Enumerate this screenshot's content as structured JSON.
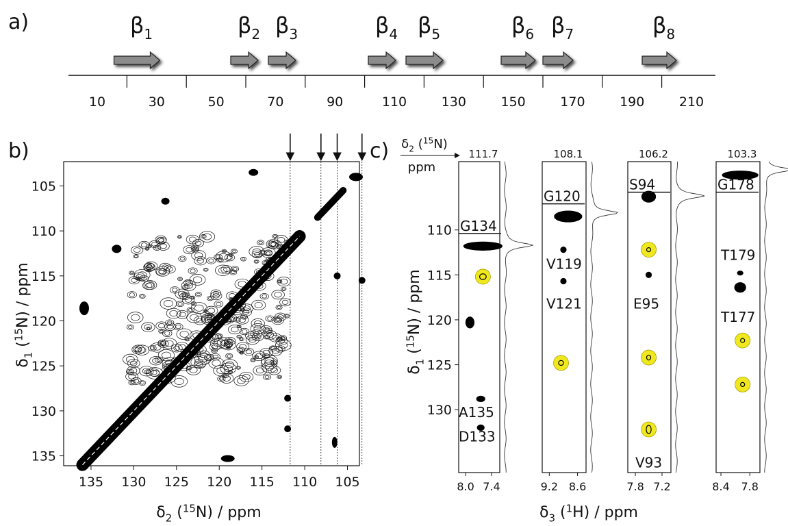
{
  "panel_a": {
    "label": "a)",
    "strands": [
      {
        "symbol": "β",
        "index": "1"
      },
      {
        "symbol": "β",
        "index": "2"
      },
      {
        "symbol": "β",
        "index": "3"
      },
      {
        "symbol": "β",
        "index": "4"
      },
      {
        "symbol": "β",
        "index": "5"
      },
      {
        "symbol": "β",
        "index": "6"
      },
      {
        "symbol": "β",
        "index": "7"
      },
      {
        "symbol": "β",
        "index": "8"
      }
    ],
    "ticks": [
      10,
      30,
      50,
      70,
      90,
      110,
      130,
      150,
      170,
      190,
      210
    ]
  },
  "panel_b": {
    "label": "b)",
    "x_label": {
      "symbol": "δ",
      "index": "2",
      "open": " (",
      "isotope": "15",
      "rest": "N) / ppm"
    },
    "y_label": {
      "symbol": "δ",
      "index": "1",
      "open": " (",
      "isotope": "15",
      "rest": "N) / ppm"
    },
    "xticks": [
      135,
      130,
      125,
      120,
      115,
      110,
      105
    ],
    "yticks": [
      105,
      110,
      115,
      120,
      125,
      130,
      135
    ],
    "xlim": [
      138.2,
      103.6
    ],
    "ylim": [
      102.3,
      136.1
    ]
  },
  "panel_c": {
    "label": "c)",
    "header_label": {
      "symbol": "δ",
      "index": "2",
      "open": " (",
      "isotope": "15",
      "rest": "N)"
    },
    "header_unit": "ppm",
    "y_label": {
      "symbol": "δ",
      "index": "1",
      "open": " (",
      "isotope": "15",
      "rest": "N) / ppm"
    },
    "x_label": {
      "symbol": "δ",
      "index": "3",
      "open": " (",
      "isotope": "1",
      "rest": "H) / ppm"
    },
    "yticks": [
      110,
      115,
      120,
      125,
      130
    ],
    "ylim": [
      102.4,
      137
    ],
    "strips": [
      {
        "shift": 111.7,
        "xticks": [
          {
            "value": 8,
            "label": "8.0"
          },
          7.4
        ],
        "xlim": [
          8.16,
          7.21
        ],
        "assignment": "G134",
        "labels": [
          "D133",
          "A135"
        ]
      },
      {
        "shift": 108.1,
        "xticks": [
          9.2,
          8.6
        ],
        "xlim": [
          9.35,
          8.42
        ],
        "assignment": "G120",
        "labels": [
          "V119",
          "V121"
        ]
      },
      {
        "shift": 106.2,
        "xticks": [
          7.8,
          7.2
        ],
        "xlim": [
          7.97,
          7.0
        ],
        "assignment": "S94",
        "labels": [
          "E95",
          "V93"
        ]
      },
      {
        "shift": 103.3,
        "xticks": [
          8.4,
          7.8
        ],
        "xlim": [
          8.5,
          7.59
        ],
        "assignment": "G178",
        "labels": [
          "T179",
          "T177"
        ]
      }
    ]
  }
}
